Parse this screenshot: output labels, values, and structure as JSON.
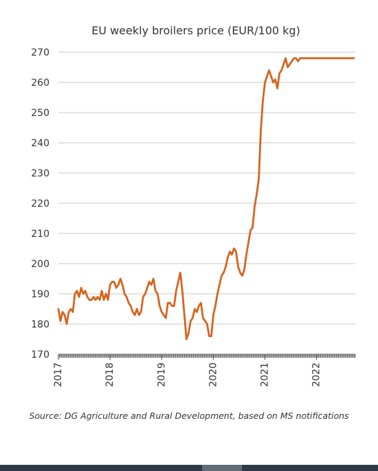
{
  "chart_data": {
    "type": "line",
    "title": "EU weekly broilers price (EUR/100 kg)",
    "xlabel": "",
    "ylabel": "",
    "ylim": [
      170,
      270
    ],
    "yticks": [
      170,
      180,
      190,
      200,
      210,
      220,
      230,
      240,
      250,
      260,
      270
    ],
    "xlim": [
      2017.0,
      2022.75
    ],
    "xticks": [
      "2017",
      "2018",
      "2019",
      "2020",
      "2021",
      "2022"
    ],
    "grid": true,
    "legend": "none",
    "line_color": "#d4641e",
    "x": [
      2017.0,
      2017.04,
      2017.08,
      2017.12,
      2017.16,
      2017.2,
      2017.24,
      2017.28,
      2017.32,
      2017.36,
      2017.4,
      2017.44,
      2017.48,
      2017.52,
      2017.56,
      2017.6,
      2017.64,
      2017.68,
      2017.72,
      2017.76,
      2017.8,
      2017.84,
      2017.88,
      2017.92,
      2017.96,
      2018.0,
      2018.04,
      2018.08,
      2018.12,
      2018.16,
      2018.2,
      2018.24,
      2018.28,
      2018.32,
      2018.36,
      2018.4,
      2018.44,
      2018.48,
      2018.52,
      2018.56,
      2018.6,
      2018.64,
      2018.68,
      2018.72,
      2018.76,
      2018.8,
      2018.84,
      2018.88,
      2018.92,
      2018.96,
      2019.0,
      2019.04,
      2019.08,
      2019.12,
      2019.16,
      2019.2,
      2019.24,
      2019.28,
      2019.32,
      2019.36,
      2019.4,
      2019.44,
      2019.48,
      2019.52,
      2019.56,
      2019.6,
      2019.64,
      2019.68,
      2019.72,
      2019.76,
      2019.8,
      2019.84,
      2019.88,
      2019.92,
      2019.96,
      2020.0,
      2020.04,
      2020.08,
      2020.12,
      2020.16,
      2020.2,
      2020.24,
      2020.28,
      2020.32,
      2020.36,
      2020.4,
      2020.44,
      2020.48,
      2020.52,
      2020.56,
      2020.6,
      2020.64,
      2020.68,
      2020.72,
      2020.76,
      2020.8,
      2020.84,
      2020.88,
      2020.92,
      2020.96,
      2021.0,
      2021.04,
      2021.08,
      2021.12,
      2021.16,
      2021.2,
      2021.24,
      2021.28,
      2021.32,
      2021.36,
      2021.4,
      2021.44,
      2021.48,
      2021.52,
      2021.56,
      2021.6,
      2021.64,
      2021.68,
      2021.72,
      2021.76,
      2021.8,
      2021.84,
      2021.88,
      2021.92,
      2021.96,
      2022.0,
      2022.04,
      2022.08,
      2022.12,
      2022.16,
      2022.2,
      2022.24,
      2022.28,
      2022.32,
      2022.36,
      2022.4,
      2022.44,
      2022.48,
      2022.52,
      2022.56,
      2022.6,
      2022.64,
      2022.68,
      2022.72
    ],
    "y": [
      185,
      181,
      184,
      183,
      180,
      184,
      185,
      184,
      190,
      191,
      189,
      192,
      190,
      191,
      189,
      188,
      188,
      189,
      188,
      189,
      188,
      191,
      188,
      190,
      188,
      193,
      194,
      194,
      192,
      193,
      195,
      193,
      190,
      189,
      187,
      186,
      184,
      183,
      185,
      183,
      184,
      189,
      190,
      192,
      194,
      193,
      195,
      191,
      190,
      186,
      184,
      183,
      182,
      187,
      187,
      186,
      186,
      191,
      194,
      197,
      191,
      183,
      175,
      177,
      181,
      182,
      185,
      184,
      186,
      187,
      182,
      181,
      180,
      176,
      176,
      183,
      186,
      190,
      193,
      196,
      197,
      199,
      202,
      204,
      203,
      205,
      204,
      199,
      197,
      196,
      198,
      203,
      207,
      211,
      212,
      219,
      223,
      228,
      244,
      254,
      260,
      262,
      264,
      262,
      260,
      261,
      258,
      263,
      264,
      266,
      268,
      265,
      266,
      267,
      268,
      268,
      267,
      268,
      268,
      268,
      268,
      268,
      268,
      268,
      268,
      268,
      268,
      268,
      268,
      268,
      268,
      268,
      268,
      268,
      268,
      268,
      268,
      268,
      268,
      268,
      268,
      268,
      268,
      268
    ]
  },
  "source_note": "Source: DG Agriculture and Rural Development, based on MS notifications"
}
